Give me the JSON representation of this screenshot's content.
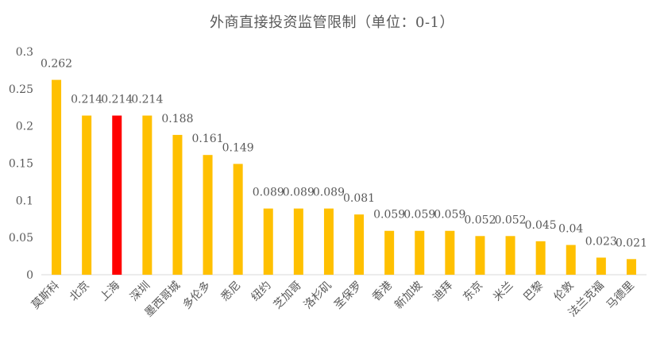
{
  "chart_data": {
    "type": "bar",
    "title": "外商直接投资监管限制（单位：0-1）",
    "categories": [
      "莫斯科",
      "北京",
      "上海",
      "深圳",
      "墨西哥城",
      "多伦多",
      "悉尼",
      "纽约",
      "芝加哥",
      "洛杉矶",
      "圣保罗",
      "香港",
      "新加坡",
      "迪拜",
      "东京",
      "米兰",
      "巴黎",
      "伦敦",
      "法兰克福",
      "马德里"
    ],
    "values": [
      0.262,
      0.214,
      0.214,
      0.214,
      0.188,
      0.161,
      0.149,
      0.089,
      0.089,
      0.089,
      0.081,
      0.059,
      0.059,
      0.059,
      0.052,
      0.052,
      0.045,
      0.04,
      0.023,
      0.021
    ],
    "value_labels": [
      "0.262",
      "0.214",
      "0.214",
      "0.214",
      "0.188",
      "0.161",
      "0.149",
      "0.089",
      "0.089",
      "0.089",
      "0.081",
      "0.059",
      "0.059",
      "0.059",
      "0.052",
      "0.052",
      "0.045",
      "0.04",
      "0.023",
      "0.021"
    ],
    "y_ticks": [
      "0",
      "0.05",
      "0.1",
      "0.15",
      "0.2",
      "0.25",
      "0.3"
    ],
    "ylim": [
      0,
      0.3
    ],
    "xlabel": "",
    "ylabel": "",
    "grid": false,
    "legend": "none",
    "colors": {
      "default": "#FFC000",
      "highlight": "#FF0000",
      "highlight_category": "上海",
      "axis": "#D9D9D9",
      "text": "#595959"
    }
  }
}
